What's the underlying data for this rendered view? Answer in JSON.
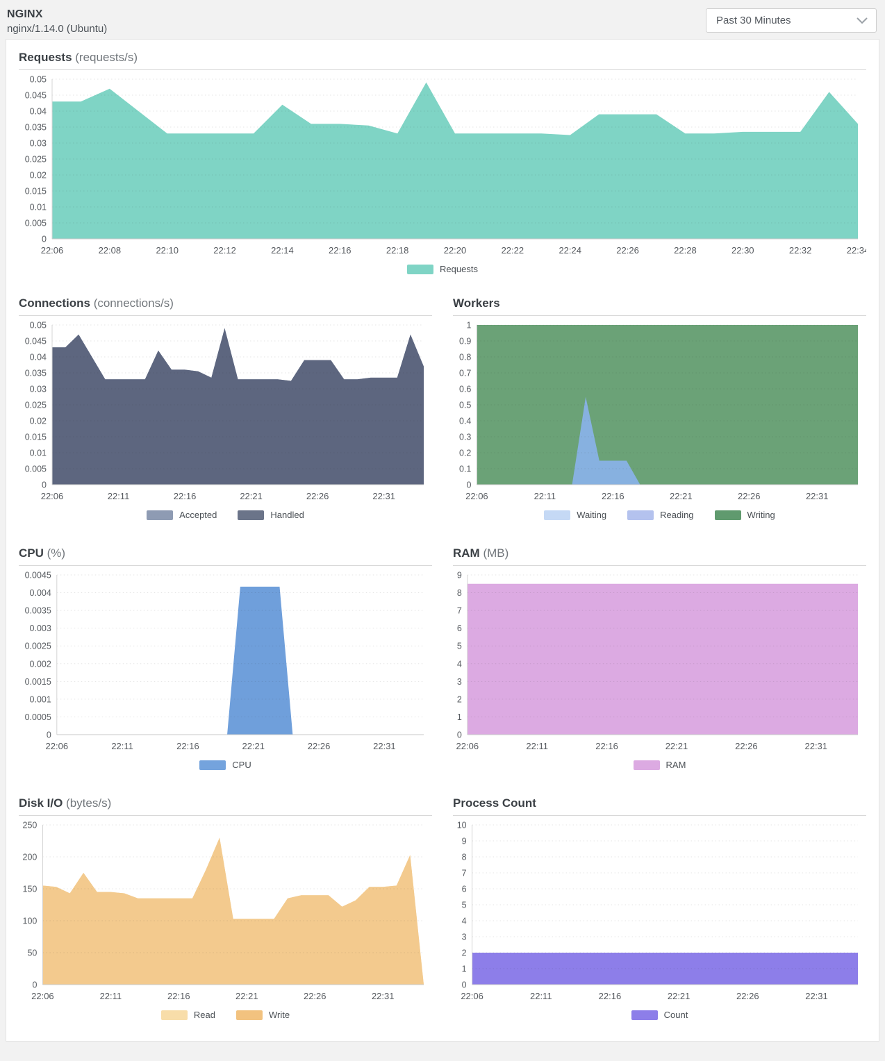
{
  "header": {
    "title": "NGINX",
    "subtitle": "nginx/1.14.0 (Ubuntu)"
  },
  "controls": {
    "time_range": {
      "value": "Past 30 Minutes"
    }
  },
  "chart_data": [
    {
      "id": "requests",
      "type": "area",
      "title": "Requests",
      "unit": "(requests/s)",
      "layout": "full",
      "ylim": [
        0,
        0.05
      ],
      "ymax": 0.05,
      "y_ticks": [
        "0.05",
        "0.045",
        "0.04",
        "0.035",
        "0.03",
        "0.025",
        "0.02",
        "0.015",
        "0.01",
        "0.005",
        "0"
      ],
      "x": [
        "22:06",
        "22:07",
        "22:08",
        "22:09",
        "22:10",
        "22:11",
        "22:12",
        "22:13",
        "22:14",
        "22:15",
        "22:16",
        "22:17",
        "22:18",
        "22:19",
        "22:20",
        "22:21",
        "22:22",
        "22:23",
        "22:24",
        "22:25",
        "22:26",
        "22:27",
        "22:28",
        "22:29",
        "22:30",
        "22:31",
        "22:32",
        "22:33",
        "22:34"
      ],
      "x_tick_indices": [
        0,
        2,
        4,
        6,
        8,
        10,
        12,
        14,
        16,
        18,
        20,
        22,
        24,
        26,
        28
      ],
      "x_tick_labels": [
        "22:06",
        "22:08",
        "22:10",
        "22:12",
        "22:14",
        "22:16",
        "22:18",
        "22:20",
        "22:22",
        "22:24",
        "22:26",
        "22:28",
        "22:30",
        "22:32",
        "22:34"
      ],
      "series": [
        {
          "name": "Requests",
          "color": "#7fd4c5",
          "values": [
            0.043,
            0.043,
            0.047,
            0.04,
            0.033,
            0.033,
            0.033,
            0.033,
            0.042,
            0.036,
            0.036,
            0.0355,
            0.033,
            0.049,
            0.033,
            0.033,
            0.033,
            0.033,
            0.0325,
            0.039,
            0.039,
            0.039,
            0.033,
            0.033,
            0.0335,
            0.0335,
            0.0335,
            0.046,
            0.036
          ]
        }
      ],
      "legend": [
        {
          "label": "Requests",
          "color": "#7fd4c5"
        }
      ]
    },
    {
      "id": "connections",
      "type": "area",
      "title": "Connections",
      "unit": "(connections/s)",
      "layout": "half",
      "ylim": [
        0,
        0.05
      ],
      "ymax": 0.05,
      "y_ticks": [
        "0.05",
        "0.045",
        "0.04",
        "0.035",
        "0.03",
        "0.025",
        "0.02",
        "0.015",
        "0.01",
        "0.005",
        "0"
      ],
      "x": [
        "22:06",
        "22:07",
        "22:08",
        "22:09",
        "22:10",
        "22:11",
        "22:12",
        "22:13",
        "22:14",
        "22:15",
        "22:16",
        "22:17",
        "22:18",
        "22:19",
        "22:20",
        "22:21",
        "22:22",
        "22:23",
        "22:24",
        "22:25",
        "22:26",
        "22:27",
        "22:28",
        "22:29",
        "22:30",
        "22:31",
        "22:32",
        "22:33",
        "22:34"
      ],
      "x_tick_indices": [
        0,
        5,
        10,
        15,
        20,
        25
      ],
      "x_tick_labels": [
        "22:06",
        "22:11",
        "22:16",
        "22:21",
        "22:26",
        "22:31"
      ],
      "series": [
        {
          "name": "Accepted",
          "color": "#8e9bb3",
          "values": [
            0.043,
            0.043,
            0.047,
            0.04,
            0.033,
            0.033,
            0.033,
            0.033,
            0.042,
            0.036,
            0.036,
            0.0355,
            0.0335,
            0.049,
            0.033,
            0.033,
            0.033,
            0.033,
            0.0325,
            0.039,
            0.039,
            0.039,
            0.033,
            0.033,
            0.0335,
            0.0335,
            0.0335,
            0.047,
            0.037
          ]
        },
        {
          "name": "Handled",
          "color": "#5d667f",
          "values": [
            0.043,
            0.043,
            0.047,
            0.04,
            0.033,
            0.033,
            0.033,
            0.033,
            0.042,
            0.036,
            0.036,
            0.0355,
            0.0335,
            0.049,
            0.033,
            0.033,
            0.033,
            0.033,
            0.0325,
            0.039,
            0.039,
            0.039,
            0.033,
            0.033,
            0.0335,
            0.0335,
            0.0335,
            0.047,
            0.037
          ]
        }
      ],
      "legend": [
        {
          "label": "Accepted",
          "color": "#8e9bb3"
        },
        {
          "label": "Handled",
          "color": "#6b7489"
        }
      ]
    },
    {
      "id": "workers",
      "type": "area",
      "title": "Workers",
      "unit": "",
      "layout": "half",
      "ylim": [
        0,
        1
      ],
      "ymax": 1,
      "y_ticks": [
        "1",
        "0.9",
        "0.8",
        "0.7",
        "0.6",
        "0.5",
        "0.4",
        "0.3",
        "0.2",
        "0.1",
        "0"
      ],
      "x": [
        "22:06",
        "22:07",
        "22:08",
        "22:09",
        "22:10",
        "22:11",
        "22:12",
        "22:13",
        "22:14",
        "22:15",
        "22:16",
        "22:17",
        "22:18",
        "22:19",
        "22:20",
        "22:21",
        "22:22",
        "22:23",
        "22:24",
        "22:25",
        "22:26",
        "22:27",
        "22:28",
        "22:29",
        "22:30",
        "22:31",
        "22:32",
        "22:33",
        "22:34"
      ],
      "x_tick_indices": [
        0,
        5,
        10,
        15,
        20,
        25
      ],
      "x_tick_labels": [
        "22:06",
        "22:11",
        "22:16",
        "22:21",
        "22:26",
        "22:31"
      ],
      "series": [
        {
          "name": "Writing",
          "color": "#6ba277",
          "values": [
            1,
            1,
            1,
            1,
            1,
            1,
            1,
            1,
            1,
            1,
            1,
            1,
            1,
            1,
            1,
            1,
            1,
            1,
            1,
            1,
            1,
            1,
            1,
            1,
            1,
            1,
            1,
            1,
            1
          ]
        },
        {
          "name": "Reading",
          "color": "#b4c2ee",
          "values": [
            0,
            0,
            0,
            0,
            0,
            0,
            0,
            0,
            0,
            0,
            0,
            0,
            0,
            0,
            0,
            0,
            0,
            0,
            0,
            0,
            0,
            0,
            0,
            0,
            0,
            0,
            0,
            0,
            0
          ]
        },
        {
          "name": "Waiting",
          "color": "#87b1e0",
          "values": [
            0,
            0,
            0,
            0,
            0,
            0,
            0,
            0,
            0.55,
            0.15,
            0.15,
            0.15,
            0,
            0,
            0,
            0,
            0,
            0,
            0,
            0,
            0,
            0,
            0,
            0,
            0,
            0,
            0,
            0,
            0
          ]
        }
      ],
      "legend": [
        {
          "label": "Waiting",
          "color": "#c5d9f5"
        },
        {
          "label": "Reading",
          "color": "#b4c2ee"
        },
        {
          "label": "Writing",
          "color": "#609a6e"
        }
      ]
    },
    {
      "id": "cpu",
      "type": "area",
      "title": "CPU",
      "unit": "(%)",
      "layout": "half",
      "ylim": [
        0,
        0.0045
      ],
      "ymax": 0.0045,
      "y_ticks": [
        "0.0045",
        "0.004",
        "0.0035",
        "0.003",
        "0.0025",
        "0.002",
        "0.0015",
        "0.001",
        "0.0005",
        "0"
      ],
      "x": [
        "22:06",
        "22:07",
        "22:08",
        "22:09",
        "22:10",
        "22:11",
        "22:12",
        "22:13",
        "22:14",
        "22:15",
        "22:16",
        "22:17",
        "22:18",
        "22:19",
        "22:20",
        "22:21",
        "22:22",
        "22:23",
        "22:24",
        "22:25",
        "22:26",
        "22:27",
        "22:28",
        "22:29",
        "22:30",
        "22:31",
        "22:32",
        "22:33",
        "22:34"
      ],
      "x_tick_indices": [
        0,
        5,
        10,
        15,
        20,
        25
      ],
      "x_tick_labels": [
        "22:06",
        "22:11",
        "22:16",
        "22:21",
        "22:26",
        "22:31"
      ],
      "series": [
        {
          "name": "CPU",
          "color": "#6f9fdb",
          "values": [
            0,
            0,
            0,
            0,
            0,
            0,
            0,
            0,
            0,
            0,
            0,
            0,
            0,
            0,
            0.00417,
            0.00417,
            0.00417,
            0.00417,
            0,
            0,
            0,
            0,
            0,
            0,
            0,
            0,
            0,
            0,
            0
          ]
        }
      ],
      "legend": [
        {
          "label": "CPU",
          "color": "#74a3dd"
        }
      ]
    },
    {
      "id": "ram",
      "type": "area",
      "title": "RAM",
      "unit": "(MB)",
      "layout": "half",
      "ylim": [
        0,
        9
      ],
      "ymax": 9,
      "y_ticks": [
        "9",
        "8",
        "7",
        "6",
        "5",
        "4",
        "3",
        "2",
        "1",
        "0"
      ],
      "x": [
        "22:06",
        "22:07",
        "22:08",
        "22:09",
        "22:10",
        "22:11",
        "22:12",
        "22:13",
        "22:14",
        "22:15",
        "22:16",
        "22:17",
        "22:18",
        "22:19",
        "22:20",
        "22:21",
        "22:22",
        "22:23",
        "22:24",
        "22:25",
        "22:26",
        "22:27",
        "22:28",
        "22:29",
        "22:30",
        "22:31",
        "22:32",
        "22:33",
        "22:34"
      ],
      "x_tick_indices": [
        0,
        5,
        10,
        15,
        20,
        25
      ],
      "x_tick_labels": [
        "22:06",
        "22:11",
        "22:16",
        "22:21",
        "22:26",
        "22:31"
      ],
      "series": [
        {
          "name": "RAM",
          "color": "#dcaae2",
          "values": [
            8.5,
            8.5,
            8.5,
            8.5,
            8.5,
            8.5,
            8.5,
            8.5,
            8.5,
            8.5,
            8.5,
            8.5,
            8.5,
            8.5,
            8.5,
            8.5,
            8.5,
            8.5,
            8.5,
            8.5,
            8.5,
            8.5,
            8.5,
            8.5,
            8.5,
            8.5,
            8.5,
            8.5,
            8.5
          ]
        }
      ],
      "legend": [
        {
          "label": "RAM",
          "color": "#dcaae2"
        }
      ]
    },
    {
      "id": "disk",
      "type": "area",
      "title": "Disk I/O",
      "unit": "(bytes/s)",
      "layout": "half",
      "ylim": [
        0,
        250
      ],
      "ymax": 250,
      "y_ticks": [
        "250",
        "200",
        "150",
        "100",
        "50",
        "0"
      ],
      "x": [
        "22:06",
        "22:07",
        "22:08",
        "22:09",
        "22:10",
        "22:11",
        "22:12",
        "22:13",
        "22:14",
        "22:15",
        "22:16",
        "22:17",
        "22:18",
        "22:19",
        "22:20",
        "22:21",
        "22:22",
        "22:23",
        "22:24",
        "22:25",
        "22:26",
        "22:27",
        "22:28",
        "22:29",
        "22:30",
        "22:31",
        "22:32",
        "22:33",
        "22:34"
      ],
      "x_tick_indices": [
        0,
        5,
        10,
        15,
        20,
        25
      ],
      "x_tick_labels": [
        "22:06",
        "22:11",
        "22:16",
        "22:21",
        "22:26",
        "22:31"
      ],
      "series": [
        {
          "name": "Read",
          "color": "#f8dda9",
          "values": [
            155,
            153,
            143,
            175,
            145,
            145,
            143,
            135,
            135,
            135,
            135,
            135,
            180,
            230,
            103,
            103,
            103,
            103,
            135,
            140,
            140,
            140,
            122,
            132,
            153,
            153,
            155,
            203,
            0
          ]
        },
        {
          "name": "Write",
          "color": "#f3ca8e",
          "values": [
            155,
            153,
            143,
            175,
            145,
            145,
            143,
            135,
            135,
            135,
            135,
            135,
            180,
            230,
            103,
            103,
            103,
            103,
            135,
            140,
            140,
            140,
            122,
            132,
            153,
            153,
            155,
            203,
            0
          ]
        }
      ],
      "legend": [
        {
          "label": "Read",
          "color": "#f8dda9"
        },
        {
          "label": "Write",
          "color": "#f2c27f"
        }
      ]
    },
    {
      "id": "process_count",
      "type": "area",
      "title": "Process Count",
      "unit": "",
      "layout": "half",
      "ylim": [
        0,
        10
      ],
      "ymax": 10,
      "y_ticks": [
        "10",
        "9",
        "8",
        "7",
        "6",
        "5",
        "4",
        "3",
        "2",
        "1",
        "0"
      ],
      "x": [
        "22:06",
        "22:07",
        "22:08",
        "22:09",
        "22:10",
        "22:11",
        "22:12",
        "22:13",
        "22:14",
        "22:15",
        "22:16",
        "22:17",
        "22:18",
        "22:19",
        "22:20",
        "22:21",
        "22:22",
        "22:23",
        "22:24",
        "22:25",
        "22:26",
        "22:27",
        "22:28",
        "22:29",
        "22:30",
        "22:31",
        "22:32",
        "22:33",
        "22:34"
      ],
      "x_tick_indices": [
        0,
        5,
        10,
        15,
        20,
        25
      ],
      "x_tick_labels": [
        "22:06",
        "22:11",
        "22:16",
        "22:21",
        "22:26",
        "22:31"
      ],
      "series": [
        {
          "name": "Count",
          "color": "#8d7ee9",
          "values": [
            2,
            2,
            2,
            2,
            2,
            2,
            2,
            2,
            2,
            2,
            2,
            2,
            2,
            2,
            2,
            2,
            2,
            2,
            2,
            2,
            2,
            2,
            2,
            2,
            2,
            2,
            2,
            2,
            2
          ]
        }
      ],
      "legend": [
        {
          "label": "Count",
          "color": "#8d7ee9"
        }
      ]
    }
  ]
}
